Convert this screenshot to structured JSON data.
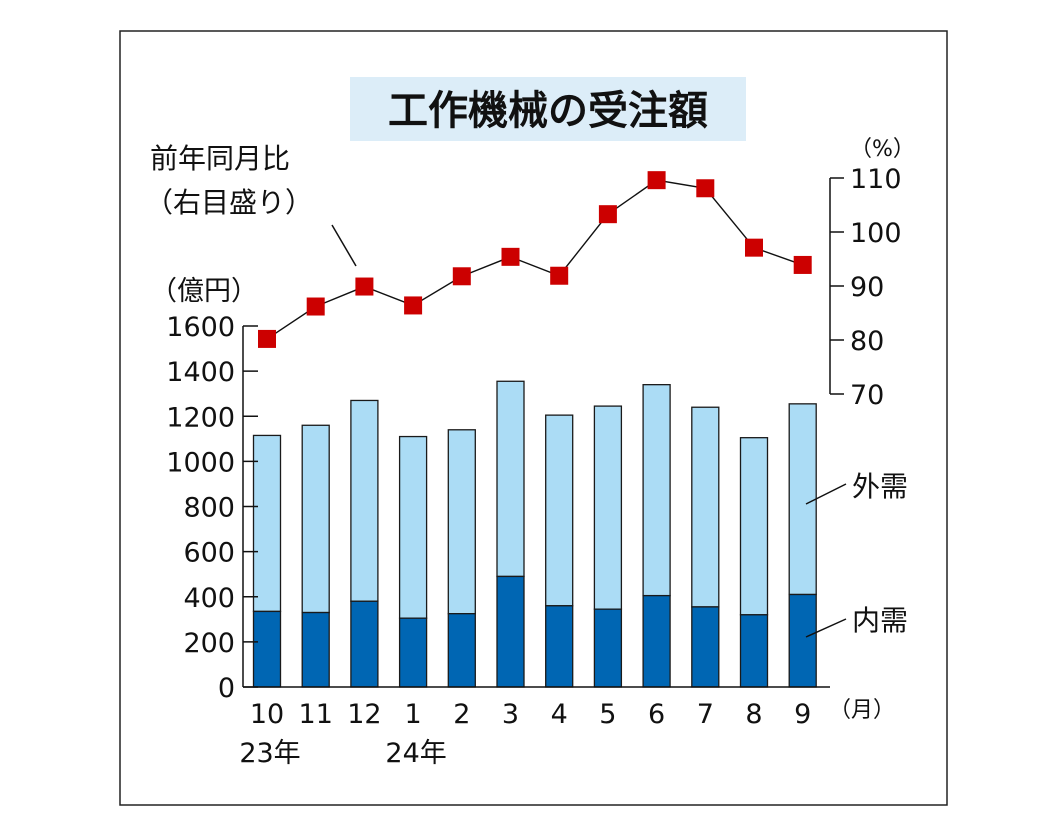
{
  "chart_data": {
    "type": "bar",
    "title": "工作機械の受注額",
    "categories": [
      "10",
      "11",
      "12",
      "1",
      "2",
      "3",
      "4",
      "5",
      "6",
      "7",
      "8",
      "9"
    ],
    "year_labels": [
      {
        "text": "23年",
        "category_index": 0
      },
      {
        "text": "24年",
        "category_index": 3
      }
    ],
    "x_unit": "（月）",
    "left_axis": {
      "unit": "（億円）",
      "ylim": [
        0,
        1600
      ],
      "ticks": [
        "0",
        "200",
        "400",
        "600",
        "800",
        "1000",
        "1200",
        "1400",
        "1600"
      ]
    },
    "right_axis": {
      "unit": "（%）",
      "ylim": [
        70,
        110
      ],
      "ticks": [
        "70",
        "80",
        "90",
        "100",
        "110"
      ]
    },
    "series": [
      {
        "name": "内需",
        "kind": "stacked-bar",
        "color": "#0066b3",
        "values": [
          335,
          330,
          380,
          305,
          325,
          490,
          360,
          345,
          405,
          355,
          320,
          410
        ]
      },
      {
        "name": "外需",
        "kind": "stacked-bar",
        "color": "#abdcf5",
        "values": [
          780,
          830,
          890,
          805,
          815,
          865,
          845,
          900,
          935,
          885,
          785,
          845
        ]
      },
      {
        "name": "前年同月比（右目盛り）",
        "kind": "line-markers",
        "color": "#cc0000",
        "values": [
          80.2,
          86.2,
          89.9,
          86.4,
          91.8,
          95.4,
          91.9,
          103.3,
          109.6,
          108.1,
          97.1,
          93.9
        ]
      }
    ],
    "annotations": {
      "ratio_label_line1": "前年同月比",
      "ratio_label_line2": "（右目盛り）",
      "outer_label": "外需",
      "inner_label": "内需"
    },
    "colors": {
      "title_bg": "#dcedf8",
      "bar_outline": "#1a1a1a",
      "marker": "#cc0000"
    }
  }
}
